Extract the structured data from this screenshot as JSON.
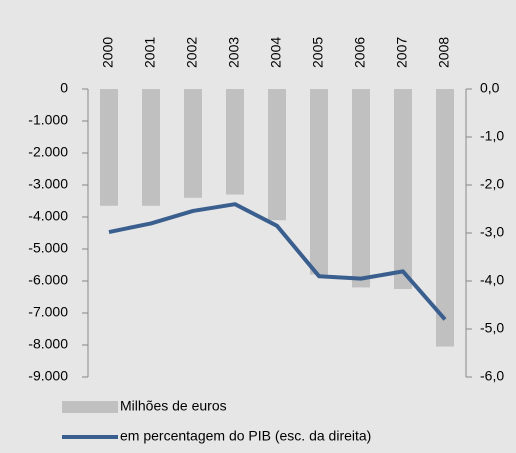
{
  "chart_data": {
    "type": "bar-line",
    "categories": [
      "2000",
      "2001",
      "2002",
      "2003",
      "2004",
      "2005",
      "2006",
      "2007",
      "2008"
    ],
    "series": [
      {
        "name": "Milhões de euros",
        "type": "bar",
        "color": "#c0c0c0",
        "values": [
          -3650,
          -3650,
          -3400,
          -3300,
          -4100,
          -5800,
          -6200,
          -6250,
          -8050
        ]
      },
      {
        "name": "em percentagem do PIB (esc. da direita)",
        "type": "line",
        "axis": "y2",
        "color": "#3a5f8f",
        "values": [
          -2.98,
          -2.8,
          -2.54,
          -2.4,
          -2.85,
          -3.9,
          -3.95,
          -3.8,
          -4.8
        ]
      }
    ],
    "ylim": [
      -9000,
      0
    ],
    "yticks": [
      0,
      {
        "value": -1000,
        "label": "-1.000"
      },
      {
        "value": -2000,
        "label": "-2.000"
      },
      {
        "value": -3000,
        "label": "-3.000"
      },
      {
        "value": -4000,
        "label": "-4.000"
      },
      {
        "value": -5000,
        "label": "-5.000"
      },
      {
        "value": -6000,
        "label": "-6.000"
      },
      {
        "value": -7000,
        "label": "-7.000"
      },
      {
        "value": -8000,
        "label": "-8.000"
      },
      {
        "value": -9000,
        "label": "-9.000"
      }
    ],
    "y2lim": [
      -6,
      0
    ],
    "y2ticks": [
      {
        "value": 0,
        "label": "0,0"
      },
      {
        "value": -1,
        "label": "-1,0"
      },
      {
        "value": -2,
        "label": "-2,0"
      },
      {
        "value": -3,
        "label": "-3,0"
      },
      {
        "value": -4,
        "label": "-4,0"
      },
      {
        "value": -5,
        "label": "-5,0"
      },
      {
        "value": -6,
        "label": "-6,0"
      }
    ]
  }
}
